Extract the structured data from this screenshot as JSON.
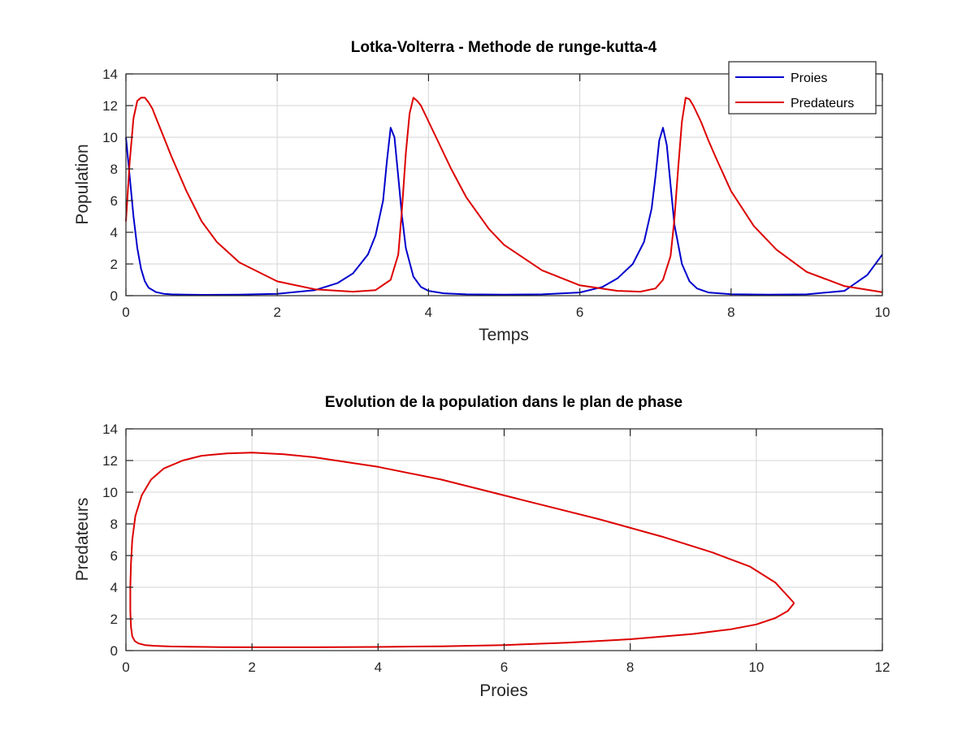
{
  "chart_data": [
    {
      "type": "line",
      "title": "Lotka-Volterra - Methode de runge-kutta-4",
      "xlabel": "Temps",
      "ylabel": "Population",
      "xlim": [
        0,
        10
      ],
      "ylim": [
        0,
        14
      ],
      "xticks": [
        "0",
        "2",
        "4",
        "6",
        "8",
        "10"
      ],
      "yticks": [
        "0",
        "2",
        "4",
        "6",
        "8",
        "10",
        "12",
        "14"
      ],
      "grid": true,
      "legend_position": "top-right",
      "series": [
        {
          "name": "Proies",
          "color": "#0000cc",
          "x": [
            0,
            0.05,
            0.1,
            0.15,
            0.2,
            0.25,
            0.3,
            0.4,
            0.5,
            0.6,
            0.8,
            1.0,
            1.5,
            2.0,
            2.5,
            2.8,
            3.0,
            3.2,
            3.3,
            3.4,
            3.45,
            3.5,
            3.55,
            3.6,
            3.65,
            3.7,
            3.8,
            3.9,
            4.0,
            4.2,
            4.5,
            5.0,
            5.5,
            6.0,
            6.3,
            6.5,
            6.7,
            6.85,
            6.95,
            7.0,
            7.05,
            7.1,
            7.15,
            7.2,
            7.25,
            7.35,
            7.45,
            7.55,
            7.7,
            8.0,
            8.5,
            9.0,
            9.5,
            9.8,
            10.0
          ],
          "y": [
            10,
            7.5,
            5.0,
            3.0,
            1.7,
            0.9,
            0.5,
            0.22,
            0.12,
            0.08,
            0.06,
            0.05,
            0.06,
            0.12,
            0.35,
            0.8,
            1.4,
            2.6,
            3.8,
            6.0,
            8.5,
            10.6,
            10.0,
            7.5,
            5.0,
            3.0,
            1.2,
            0.55,
            0.3,
            0.15,
            0.08,
            0.06,
            0.08,
            0.2,
            0.55,
            1.1,
            2.0,
            3.4,
            5.5,
            7.5,
            9.8,
            10.6,
            9.5,
            7.0,
            4.5,
            2.0,
            0.9,
            0.45,
            0.2,
            0.09,
            0.06,
            0.08,
            0.3,
            1.3,
            2.6
          ]
        },
        {
          "name": "Predateurs",
          "color": "#dd0000",
          "x": [
            0,
            0.05,
            0.1,
            0.15,
            0.2,
            0.25,
            0.3,
            0.35,
            0.4,
            0.5,
            0.6,
            0.8,
            1.0,
            1.2,
            1.5,
            2.0,
            2.5,
            3.0,
            3.3,
            3.5,
            3.6,
            3.65,
            3.7,
            3.75,
            3.8,
            3.85,
            3.9,
            4.0,
            4.1,
            4.3,
            4.5,
            4.8,
            5.0,
            5.5,
            6.0,
            6.5,
            6.8,
            7.0,
            7.1,
            7.2,
            7.25,
            7.3,
            7.35,
            7.4,
            7.45,
            7.5,
            7.6,
            7.7,
            7.8,
            8.0,
            8.3,
            8.6,
            9.0,
            9.5,
            10.0
          ],
          "y": [
            4.7,
            8.5,
            11.2,
            12.3,
            12.5,
            12.5,
            12.2,
            11.8,
            11.2,
            10.0,
            8.8,
            6.6,
            4.7,
            3.4,
            2.1,
            0.9,
            0.4,
            0.25,
            0.35,
            1.0,
            2.6,
            5.5,
            9.0,
            11.5,
            12.5,
            12.3,
            12.0,
            11.0,
            10.0,
            8.0,
            6.2,
            4.2,
            3.2,
            1.6,
            0.65,
            0.3,
            0.25,
            0.45,
            1.0,
            2.5,
            4.8,
            8.0,
            11.0,
            12.5,
            12.4,
            12.0,
            11.0,
            9.8,
            8.7,
            6.6,
            4.4,
            2.9,
            1.5,
            0.6,
            0.22
          ]
        }
      ]
    },
    {
      "type": "line",
      "title": "Evolution de la population dans le plan de phase",
      "xlabel": "Proies",
      "ylabel": "Predateurs",
      "xlim": [
        0,
        12
      ],
      "ylim": [
        0,
        14
      ],
      "xticks": [
        "0",
        "2",
        "4",
        "6",
        "8",
        "10",
        "12"
      ],
      "yticks": [
        "0",
        "2",
        "4",
        "6",
        "8",
        "10",
        "12",
        "14"
      ],
      "grid": true,
      "series": [
        {
          "color": "#dd0000",
          "x": [
            10.6,
            10.3,
            9.9,
            9.3,
            8.5,
            7.5,
            6.3,
            5.0,
            4.0,
            3.0,
            2.5,
            2.0,
            1.6,
            1.2,
            0.9,
            0.6,
            0.4,
            0.25,
            0.15,
            0.1,
            0.08,
            0.07,
            0.07,
            0.08,
            0.1,
            0.14,
            0.2,
            0.3,
            0.45,
            0.7,
            1.0,
            1.5,
            2.0,
            3.0,
            4.0,
            5.0,
            6.0,
            7.0,
            8.0,
            9.0,
            9.6,
            10.0,
            10.3,
            10.5,
            10.6
          ],
          "y": [
            3.0,
            4.3,
            5.3,
            6.2,
            7.2,
            8.3,
            9.5,
            10.8,
            11.6,
            12.2,
            12.4,
            12.5,
            12.45,
            12.3,
            12.0,
            11.5,
            10.8,
            9.8,
            8.5,
            7.0,
            5.5,
            4.0,
            2.5,
            1.5,
            0.9,
            0.6,
            0.45,
            0.35,
            0.3,
            0.26,
            0.24,
            0.22,
            0.21,
            0.21,
            0.23,
            0.27,
            0.35,
            0.5,
            0.72,
            1.05,
            1.35,
            1.65,
            2.05,
            2.5,
            3.0
          ]
        }
      ]
    }
  ]
}
